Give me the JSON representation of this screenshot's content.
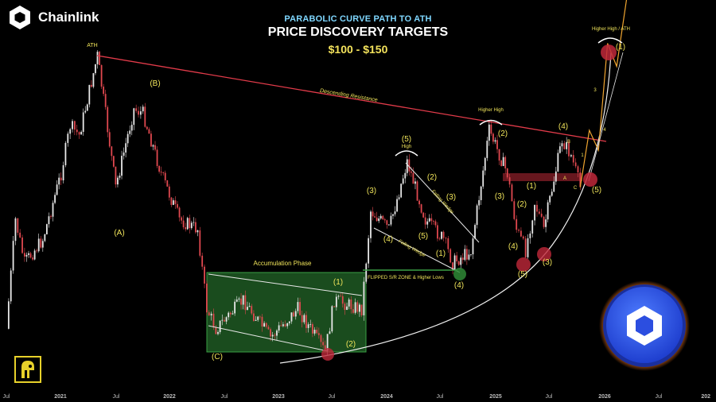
{
  "brand": {
    "name": "Chainlink"
  },
  "header": {
    "subtitle": "PARABOLIC CURVE PATH TO ATH",
    "title": "PRICE DISCOVERY TARGETS",
    "target": "$100 - $150"
  },
  "colors": {
    "background": "#000000",
    "up": "#e8e8e8",
    "down": "#e0484f",
    "resistance": "#e23b4a",
    "annotation": "#f0e45a",
    "accumulation": "#2f8a36",
    "curve": "#f2f2f2"
  },
  "chart_data": {
    "type": "candlestick",
    "x_ticks": [
      "Jul",
      "2021",
      "Jul",
      "2022",
      "Jul",
      "2023",
      "Jul",
      "2024",
      "Jul",
      "2025",
      "Jul",
      "2026",
      "Jul",
      "202"
    ],
    "x_start": "2020-07",
    "x_end": "2027-01",
    "price_path": [
      {
        "date": "2020-07",
        "price": 6
      },
      {
        "date": "2020-08",
        "price": 14
      },
      {
        "date": "2020-09",
        "price": 10
      },
      {
        "date": "2020-11",
        "price": 12
      },
      {
        "date": "2021-01",
        "price": 20
      },
      {
        "date": "2021-02",
        "price": 29
      },
      {
        "date": "2021-03",
        "price": 27
      },
      {
        "date": "2021-05",
        "price": 50
      },
      {
        "date": "2021-07",
        "price": 18
      },
      {
        "date": "2021-09",
        "price": 33
      },
      {
        "date": "2021-10",
        "price": 32
      },
      {
        "date": "2021-12",
        "price": 20
      },
      {
        "date": "2022-02",
        "price": 14
      },
      {
        "date": "2022-04",
        "price": 13
      },
      {
        "date": "2022-05",
        "price": 7
      },
      {
        "date": "2022-06",
        "price": 6
      },
      {
        "date": "2022-09",
        "price": 7.5
      },
      {
        "date": "2022-12",
        "price": 5.6
      },
      {
        "date": "2023-03",
        "price": 7
      },
      {
        "date": "2023-06",
        "price": 5
      },
      {
        "date": "2023-07",
        "price": 7.5
      },
      {
        "date": "2023-10",
        "price": 7
      },
      {
        "date": "2023-11",
        "price": 15
      },
      {
        "date": "2024-01",
        "price": 13
      },
      {
        "date": "2024-03",
        "price": 22
      },
      {
        "date": "2024-05",
        "price": 14
      },
      {
        "date": "2024-07",
        "price": 12
      },
      {
        "date": "2024-08",
        "price": 10
      },
      {
        "date": "2024-10",
        "price": 11
      },
      {
        "date": "2024-12",
        "price": 28
      },
      {
        "date": "2025-02",
        "price": 20
      },
      {
        "date": "2025-03",
        "price": 13
      },
      {
        "date": "2025-04",
        "price": 11
      },
      {
        "date": "2025-05",
        "price": 16
      },
      {
        "date": "2025-06",
        "price": 13
      },
      {
        "date": "2025-08",
        "price": 26
      },
      {
        "date": "2025-09",
        "price": 23
      },
      {
        "date": "2025-10",
        "price": 18
      }
    ],
    "projection": [
      {
        "date": "2025-10",
        "price": 18
      },
      {
        "date": "2025-11",
        "price": 28
      },
      {
        "date": "2025-12",
        "price": 24
      },
      {
        "date": "2026-01",
        "price": 55
      },
      {
        "date": "2026-02",
        "price": 46
      },
      {
        "date": "2026-04",
        "price": 120
      }
    ],
    "annotations": {
      "ath": "ATH",
      "descending_resistance": "Descending Resistance",
      "accumulation_phase": "Accumulation Phase",
      "flipped_zone": "FLIPPED S/R ZONE & Higher Lows",
      "falling_wedge": "Falling Wedge",
      "higher_high": "Higher High",
      "high": "High",
      "higher_high_ath": "Higher High / ATH",
      "wave_labels": [
        "(A)",
        "(B)",
        "(C)",
        "(1)",
        "(2)",
        "(3)",
        "(4)",
        "(5)",
        "(2)",
        "(3)",
        "(4)",
        "(5)",
        "(1)",
        "(2)",
        "(3)",
        "(4)",
        "(5)",
        "(1)",
        "(2)",
        "(3)",
        "(4)",
        "(5)",
        "(1)",
        "(2)",
        "(3)",
        "(4)",
        "(5)"
      ],
      "sub_labels": [
        "A",
        "B",
        "C",
        "1",
        "3",
        "4",
        "5"
      ]
    }
  }
}
